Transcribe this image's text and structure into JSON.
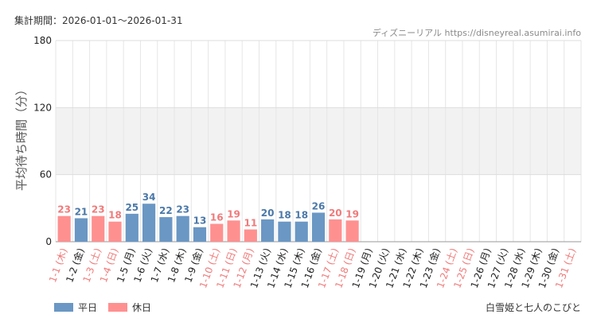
{
  "header": {
    "period_label": "集計期間：2026-01-01〜2026-01-31",
    "credit": "ディズニーリアル https://disneyreal.asumirai.info"
  },
  "footer": {
    "attraction": "白雪姫と七人のこびと"
  },
  "chart_data": {
    "type": "bar",
    "ylabel": "平均待ち時間（分）",
    "ylim": [
      0,
      180
    ],
    "yticks": [
      0,
      60,
      120,
      180
    ],
    "band": [
      60,
      120
    ],
    "grid": true,
    "legend": [
      {
        "name": "平日",
        "color": "#6a97c4"
      },
      {
        "name": "休日",
        "color": "#ff9090"
      }
    ],
    "colors": {
      "weekday_bar": "#6a97c4",
      "holiday_bar": "#ff9090",
      "weekday_text": "#4a78a8",
      "holiday_text": "#f07a7a",
      "axis_text": "#222222"
    },
    "categories": [
      {
        "label": "1-1 (木)",
        "type": "holiday",
        "value": 23
      },
      {
        "label": "1-2 (金)",
        "type": "weekday",
        "value": 21
      },
      {
        "label": "1-3 (土)",
        "type": "holiday",
        "value": 23
      },
      {
        "label": "1-4 (日)",
        "type": "holiday",
        "value": 18
      },
      {
        "label": "1-5 (月)",
        "type": "weekday",
        "value": 25
      },
      {
        "label": "1-6 (火)",
        "type": "weekday",
        "value": 34
      },
      {
        "label": "1-7 (水)",
        "type": "weekday",
        "value": 22
      },
      {
        "label": "1-8 (木)",
        "type": "weekday",
        "value": 23
      },
      {
        "label": "1-9 (金)",
        "type": "weekday",
        "value": 13
      },
      {
        "label": "1-10 (土)",
        "type": "holiday",
        "value": 16
      },
      {
        "label": "1-11 (日)",
        "type": "holiday",
        "value": 19
      },
      {
        "label": "1-12 (月)",
        "type": "holiday",
        "value": 11
      },
      {
        "label": "1-13 (火)",
        "type": "weekday",
        "value": 20
      },
      {
        "label": "1-14 (水)",
        "type": "weekday",
        "value": 18
      },
      {
        "label": "1-15 (木)",
        "type": "weekday",
        "value": 18
      },
      {
        "label": "1-16 (金)",
        "type": "weekday",
        "value": 26
      },
      {
        "label": "1-17 (土)",
        "type": "holiday",
        "value": 20
      },
      {
        "label": "1-18 (日)",
        "type": "holiday",
        "value": 19
      },
      {
        "label": "1-19 (月)",
        "type": "weekday",
        "value": null
      },
      {
        "label": "1-20 (火)",
        "type": "weekday",
        "value": null
      },
      {
        "label": "1-21 (水)",
        "type": "weekday",
        "value": null
      },
      {
        "label": "1-22 (木)",
        "type": "weekday",
        "value": null
      },
      {
        "label": "1-23 (金)",
        "type": "weekday",
        "value": null
      },
      {
        "label": "1-24 (土)",
        "type": "holiday",
        "value": null
      },
      {
        "label": "1-25 (日)",
        "type": "holiday",
        "value": null
      },
      {
        "label": "1-26 (月)",
        "type": "weekday",
        "value": null
      },
      {
        "label": "1-27 (火)",
        "type": "weekday",
        "value": null
      },
      {
        "label": "1-28 (水)",
        "type": "weekday",
        "value": null
      },
      {
        "label": "1-29 (木)",
        "type": "weekday",
        "value": null
      },
      {
        "label": "1-30 (金)",
        "type": "weekday",
        "value": null
      },
      {
        "label": "1-31 (土)",
        "type": "holiday",
        "value": null
      }
    ]
  }
}
